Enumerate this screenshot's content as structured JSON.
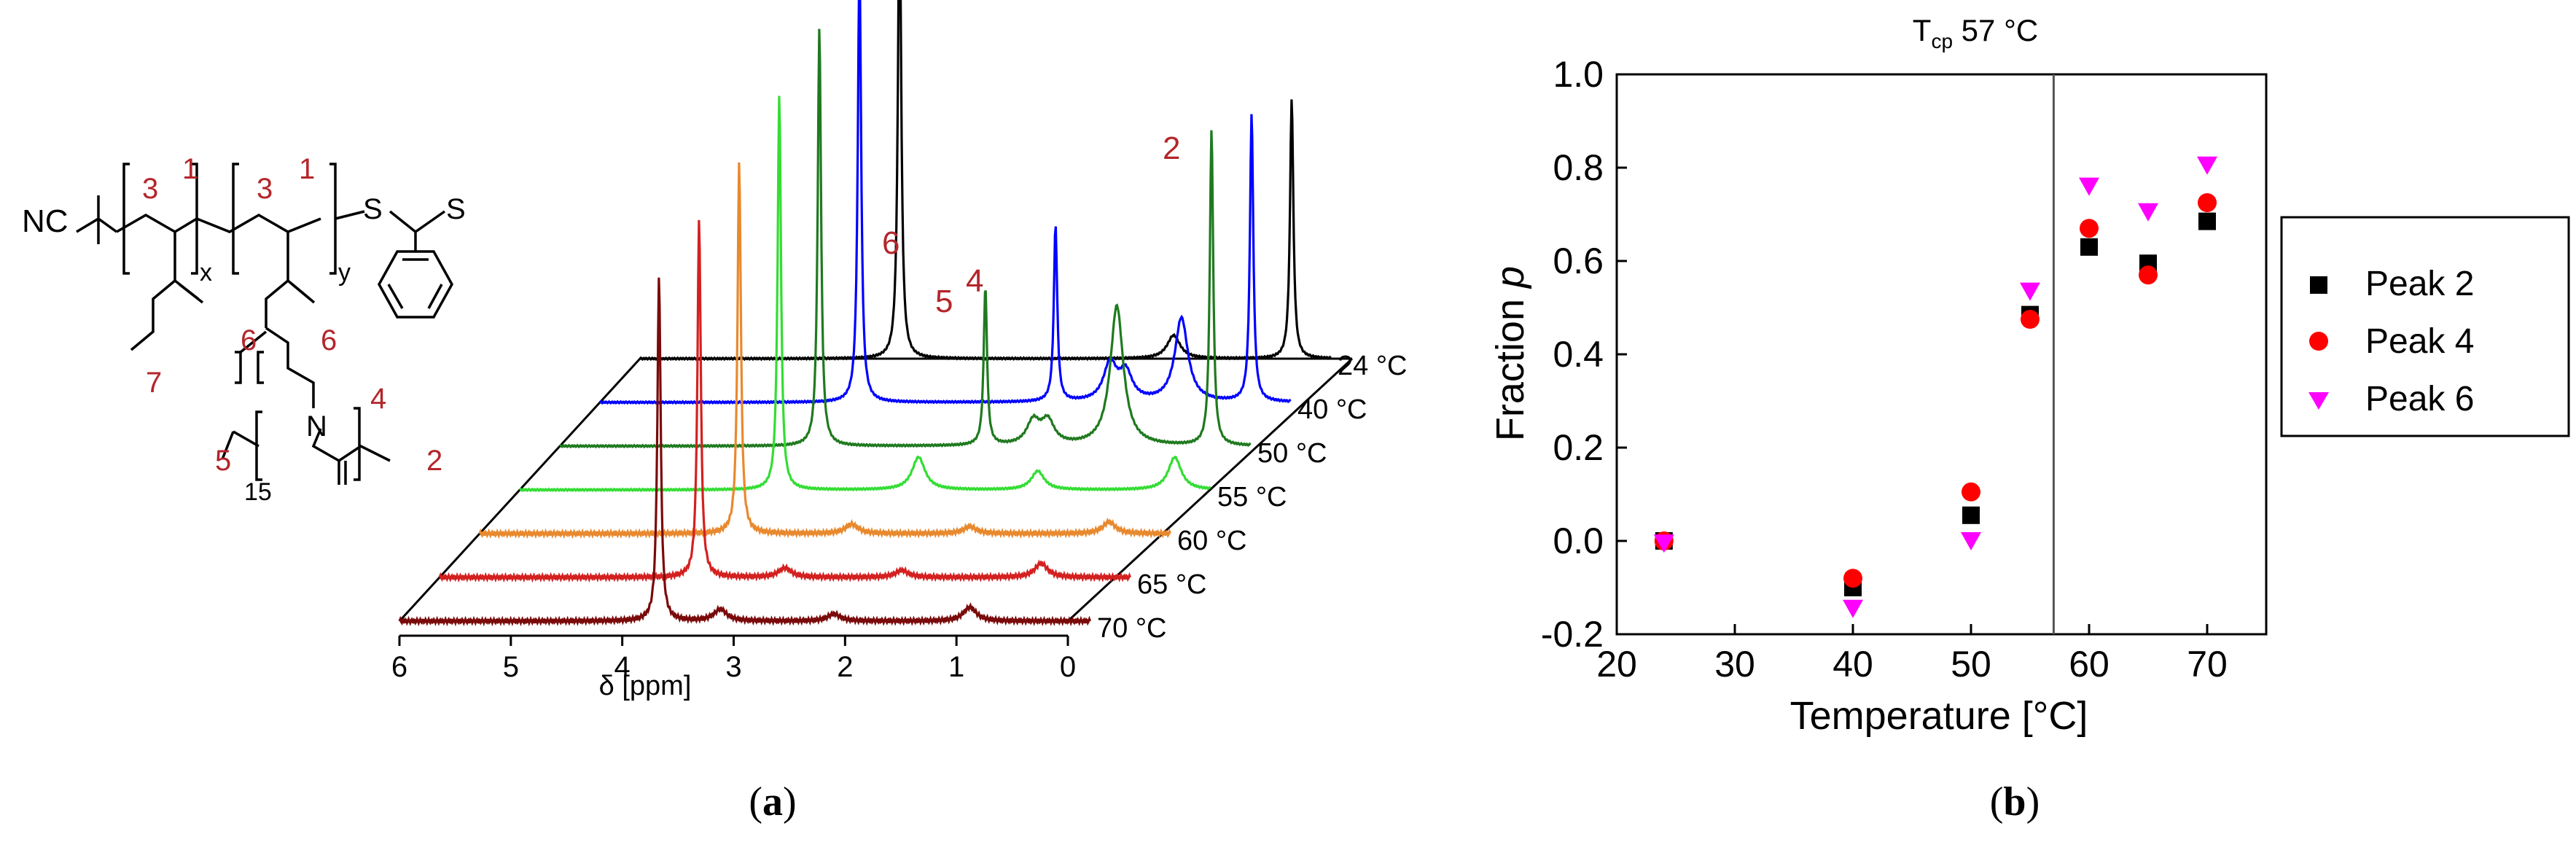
{
  "panel_a": {
    "caption": "(a)",
    "caption_letter": "a",
    "structure": {
      "nc_label": "NC",
      "s1": "S",
      "s2": "S",
      "sub_x": "x",
      "sub_y": "y",
      "sub_15": "15",
      "n_label": "N",
      "num_1a": "1",
      "num_1b": "1",
      "num_3a": "3",
      "num_3b": "3",
      "num_6a": "6",
      "num_6b": "6",
      "num_7": "7",
      "num_4": "4",
      "num_5": "5",
      "num_2": "2"
    }
  },
  "panel_b": {
    "caption": "(b)",
    "caption_letter": "b",
    "tcp_prefix": "T",
    "tcp_sub": "cp",
    "tcp_suffix": " 57 °C"
  },
  "colors": {
    "peak2": "#000000",
    "peak4": "#ff0000",
    "peak6": "#ff00ff",
    "annotation_red": "#b3262b",
    "spectra": [
      "#000000",
      "#0000ff",
      "#1f7a1f",
      "#33dd33",
      "#e8892e",
      "#d42020",
      "#7a0a0a"
    ]
  },
  "chart_data": [
    {
      "type": "line",
      "title": "",
      "xlabel": "δ [ppm]",
      "ylabel": "",
      "xlim": [
        6,
        0
      ],
      "x_ticks": [
        "6",
        "5",
        "4",
        "3",
        "2",
        "1",
        "0"
      ],
      "series": [
        {
          "name": "24 °C",
          "label": "24 °C",
          "color": "#000000",
          "peaks": [
            {
              "ppm": 3.67,
              "h": 1.0
            },
            {
              "ppm": 1.21,
              "h": 0.05
            },
            {
              "ppm": 0.15,
              "h": 0.56
            }
          ]
        },
        {
          "name": "40 °C",
          "label": "40 °C",
          "color": "#0000ff",
          "peaks": [
            {
              "ppm": 3.67,
              "h": 0.95
            },
            {
              "ppm": 1.91,
              "h": 0.38
            },
            {
              "ppm": 1.42,
              "h": 0.08
            },
            {
              "ppm": 1.28,
              "h": 0.06
            },
            {
              "ppm": 0.78,
              "h": 0.18
            },
            {
              "ppm": 0.15,
              "h": 0.62
            }
          ]
        },
        {
          "name": "50 °C",
          "label": "50 °C",
          "color": "#1f7a1f",
          "peaks": [
            {
              "ppm": 3.67,
              "h": 0.9
            },
            {
              "ppm": 2.18,
              "h": 0.34
            },
            {
              "ppm": 1.75,
              "h": 0.05
            },
            {
              "ppm": 1.62,
              "h": 0.05
            },
            {
              "ppm": 1.0,
              "h": 0.3
            },
            {
              "ppm": 0.15,
              "h": 0.68
            }
          ]
        },
        {
          "name": "55 °C",
          "label": "55 °C",
          "color": "#33dd33",
          "peaks": [
            {
              "ppm": 3.67,
              "h": 0.85
            },
            {
              "ppm": 2.42,
              "h": 0.07
            },
            {
              "ppm": 1.35,
              "h": 0.04
            },
            {
              "ppm": 0.12,
              "h": 0.07
            }
          ]
        },
        {
          "name": "60 °C",
          "label": "60 °C",
          "color": "#e8892e",
          "peaks": [
            {
              "ppm": 3.67,
              "h": 0.8
            },
            {
              "ppm": 2.66,
              "h": 0.02
            },
            {
              "ppm": 1.6,
              "h": 0.015
            },
            {
              "ppm": 0.35,
              "h": 0.025
            }
          ]
        },
        {
          "name": "65 °C",
          "label": "65 °C",
          "color": "#d42020",
          "peaks": [
            {
              "ppm": 3.67,
              "h": 0.77
            },
            {
              "ppm": 2.9,
              "h": 0.02
            },
            {
              "ppm": 1.85,
              "h": 0.015
            },
            {
              "ppm": 0.6,
              "h": 0.03
            }
          ]
        },
        {
          "name": "70 °C",
          "label": "70 °C",
          "color": "#7a0a0a",
          "peaks": [
            {
              "ppm": 3.67,
              "h": 0.74
            },
            {
              "ppm": 3.12,
              "h": 0.025
            },
            {
              "ppm": 2.1,
              "h": 0.015
            },
            {
              "ppm": 0.88,
              "h": 0.03
            }
          ]
        }
      ],
      "annotations": [
        "2",
        "4",
        "5",
        "6"
      ]
    },
    {
      "type": "scatter",
      "title": "",
      "xlabel": "Temperature [°C]",
      "ylabel": "Fraction",
      "ylabel_italic": "p",
      "xlim": [
        20,
        75
      ],
      "ylim": [
        -0.2,
        1.0
      ],
      "x_ticks": [
        "20",
        "30",
        "40",
        "50",
        "60",
        "70"
      ],
      "y_ticks": [
        "-0.2",
        "0.0",
        "0.2",
        "0.4",
        "0.6",
        "0.8",
        "1.0"
      ],
      "vline": 57,
      "series": [
        {
          "name": "Peak 2",
          "marker": "square",
          "color": "#000000",
          "x": [
            24,
            40,
            50,
            55,
            60,
            65,
            70
          ],
          "y": [
            0.0,
            -0.1,
            0.055,
            0.485,
            0.63,
            0.595,
            0.685
          ]
        },
        {
          "name": "Peak 4",
          "marker": "circle",
          "color": "#ff0000",
          "x": [
            24,
            40,
            50,
            55,
            60,
            65,
            70
          ],
          "y": [
            0.0,
            -0.08,
            0.105,
            0.475,
            0.67,
            0.57,
            0.725
          ]
        },
        {
          "name": "Peak 6",
          "marker": "triangle-down",
          "color": "#ff00ff",
          "x": [
            24,
            40,
            50,
            55,
            60,
            65,
            70
          ],
          "y": [
            -0.005,
            -0.145,
            0.0,
            0.535,
            0.76,
            0.705,
            0.805
          ]
        }
      ]
    }
  ]
}
